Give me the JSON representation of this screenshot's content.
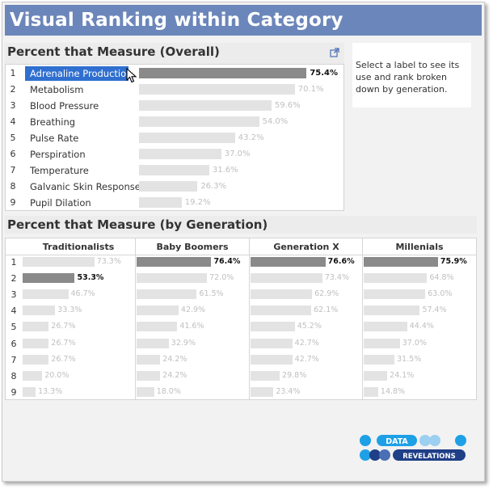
{
  "title": "Visual Ranking within Category",
  "overall": {
    "heading": "Percent that Measure (Overall)",
    "selected_index": 0,
    "rows": [
      {
        "rank": "1",
        "label": "Adrenaline Production",
        "value": 75.4,
        "value_text": "75.4%"
      },
      {
        "rank": "2",
        "label": "Metabolism",
        "value": 70.1,
        "value_text": "70.1%"
      },
      {
        "rank": "3",
        "label": "Blood Pressure",
        "value": 59.6,
        "value_text": "59.6%"
      },
      {
        "rank": "4",
        "label": "Breathing",
        "value": 54.0,
        "value_text": "54.0%"
      },
      {
        "rank": "5",
        "label": "Pulse Rate",
        "value": 43.2,
        "value_text": "43.2%"
      },
      {
        "rank": "6",
        "label": "Perspiration",
        "value": 37.0,
        "value_text": "37.0%"
      },
      {
        "rank": "7",
        "label": "Temperature",
        "value": 31.6,
        "value_text": "31.6%"
      },
      {
        "rank": "8",
        "label": "Galvanic Skin Response",
        "value": 26.3,
        "value_text": "26.3%"
      },
      {
        "rank": "9",
        "label": "Pupil Dilation",
        "value": 19.2,
        "value_text": "19.2%"
      }
    ]
  },
  "info_text": "Select a label to see its use and rank broken down by generation.",
  "by_generation": {
    "heading": "Percent that Measure (by Generation)",
    "ranks": [
      "1",
      "2",
      "3",
      "4",
      "5",
      "6",
      "7",
      "8",
      "9"
    ],
    "columns": [
      {
        "name": "Traditionalists",
        "highlight_rank": 2,
        "values": [
          73.3,
          53.3,
          46.7,
          33.3,
          26.7,
          26.7,
          26.7,
          20.0,
          13.3
        ],
        "value_texts": [
          "73.3%",
          "53.3%",
          "46.7%",
          "33.3%",
          "26.7%",
          "26.7%",
          "26.7%",
          "20.0%",
          "13.3%"
        ]
      },
      {
        "name": "Baby Boomers",
        "highlight_rank": 1,
        "values": [
          76.4,
          72.0,
          61.5,
          42.9,
          41.6,
          32.9,
          24.2,
          24.2,
          18.0
        ],
        "value_texts": [
          "76.4%",
          "72.0%",
          "61.5%",
          "42.9%",
          "41.6%",
          "32.9%",
          "24.2%",
          "24.2%",
          "18.0%"
        ]
      },
      {
        "name": "Generation X",
        "highlight_rank": 1,
        "values": [
          76.6,
          73.4,
          62.9,
          62.1,
          45.2,
          42.7,
          42.7,
          29.8,
          23.4
        ],
        "value_texts": [
          "76.6%",
          "73.4%",
          "62.9%",
          "62.1%",
          "45.2%",
          "42.7%",
          "42.7%",
          "29.8%",
          "23.4%"
        ]
      },
      {
        "name": "Millenials",
        "highlight_rank": 1,
        "values": [
          75.9,
          64.8,
          63.0,
          57.4,
          44.4,
          37.0,
          31.5,
          24.1,
          14.8
        ],
        "value_texts": [
          "75.9%",
          "64.8%",
          "63.0%",
          "57.4%",
          "44.4%",
          "37.0%",
          "31.5%",
          "24.1%",
          "14.8%"
        ]
      }
    ]
  },
  "chart_data": [
    {
      "type": "bar",
      "title": "Percent that Measure (Overall)",
      "categories": [
        "Adrenaline Production",
        "Metabolism",
        "Blood Pressure",
        "Breathing",
        "Pulse Rate",
        "Perspiration",
        "Temperature",
        "Galvanic Skin Response",
        "Pupil Dilation"
      ],
      "values": [
        75.4,
        70.1,
        59.6,
        54.0,
        43.2,
        37.0,
        31.6,
        26.3,
        19.2
      ],
      "xlabel": "",
      "ylabel": "",
      "xlim": [
        0,
        100
      ]
    },
    {
      "type": "bar",
      "title": "Percent that Measure (by Generation)",
      "categories": [
        "1",
        "2",
        "3",
        "4",
        "5",
        "6",
        "7",
        "8",
        "9"
      ],
      "series": [
        {
          "name": "Traditionalists",
          "values": [
            73.3,
            53.3,
            46.7,
            33.3,
            26.7,
            26.7,
            26.7,
            20.0,
            13.3
          ]
        },
        {
          "name": "Baby Boomers",
          "values": [
            76.4,
            72.0,
            61.5,
            42.9,
            41.6,
            32.9,
            24.2,
            24.2,
            18.0
          ]
        },
        {
          "name": "Generation X",
          "values": [
            76.6,
            73.4,
            62.9,
            62.1,
            45.2,
            42.7,
            42.7,
            29.8,
            23.4
          ]
        },
        {
          "name": "Millenials",
          "values": [
            75.9,
            64.8,
            63.0,
            57.4,
            44.4,
            37.0,
            31.5,
            24.1,
            14.8
          ]
        }
      ],
      "xlabel": "",
      "ylabel": "",
      "xlim": [
        0,
        100
      ]
    }
  ],
  "logo": {
    "top": "DATA",
    "bottom": "REVELATIONS"
  },
  "colors": {
    "title_bg": "#6b86ba",
    "selected": "#2f6fcf",
    "bar": "#e3e3e3",
    "bar_highlight": "#8a8a8a",
    "logo": "#1ea0e6",
    "logo_dark": "#1f3f87"
  },
  "icons": {
    "external": "external-link-icon",
    "cursor": "mouse-pointer-icon"
  }
}
